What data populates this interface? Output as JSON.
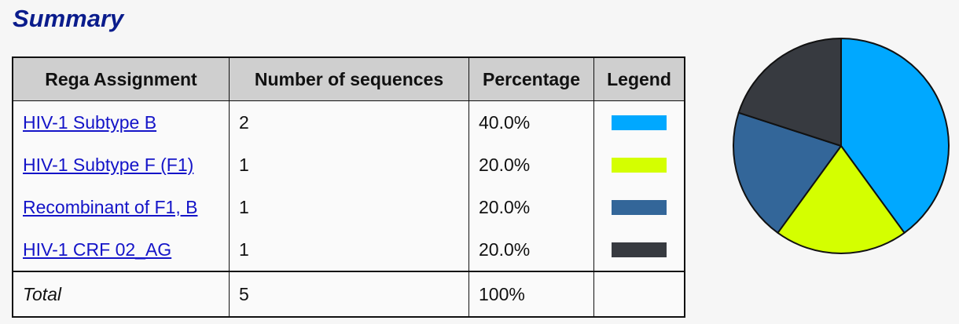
{
  "title": "Summary",
  "table": {
    "headers": {
      "assignment": "Rega Assignment",
      "count": "Number of sequences",
      "percentage": "Percentage",
      "legend": "Legend"
    },
    "rows": [
      {
        "assignment": "HIV-1 Subtype B",
        "count": "2",
        "percentage": "40.0%",
        "color": "#00a8ff"
      },
      {
        "assignment": "HIV-1 Subtype F (F1)",
        "count": "1",
        "percentage": "20.0%",
        "color": "#d4ff00"
      },
      {
        "assignment": "Recombinant of F1, B",
        "count": "1",
        "percentage": "20.0%",
        "color": "#336699"
      },
      {
        "assignment": "HIV-1 CRF 02_AG",
        "count": "1",
        "percentage": "20.0%",
        "color": "#373a40"
      }
    ],
    "total": {
      "label": "Total",
      "count": "5",
      "percentage": "100%"
    }
  },
  "chart_data": {
    "type": "pie",
    "categories": [
      "HIV-1 Subtype B",
      "HIV-1 Subtype F (F1)",
      "Recombinant of F1, B",
      "HIV-1 CRF 02_AG"
    ],
    "values": [
      2,
      1,
      1,
      1
    ],
    "colors": [
      "#00a8ff",
      "#d4ff00",
      "#336699",
      "#373a40"
    ],
    "start": "12 o'clock",
    "direction": "clockwise"
  }
}
